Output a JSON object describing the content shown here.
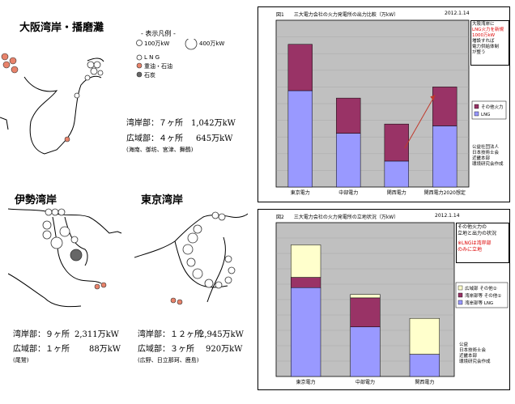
{
  "maps": {
    "osaka": {
      "title": "大阪湾岸・播磨灘",
      "legend_title": "- 表示凡例 -",
      "legend_100": "100万kW",
      "legend_400": "400万kW",
      "legend_lng": "L N G",
      "legend_oil": "重油・石油",
      "legend_coal": "石炭",
      "line1_label": "湾岸部：７ヶ所",
      "line1_value": "1,042万kW",
      "line2_label": "広域部：４ヶ所",
      "line2_value": "645万kW",
      "line2_note": "(海南、御坊、宮津、舞鶴)"
    },
    "ise": {
      "title": "伊勢湾岸",
      "line1_label": "湾岸部：９ヶ所",
      "line1_value": "2,311万kW",
      "line2_label": "広域部：１ヶ所",
      "line2_value": "88万kW",
      "line2_note": "(尾鷲)"
    },
    "tokyo": {
      "title": "東京湾岸",
      "line1_label": "湾岸部：１２ヶ所",
      "line1_value": "2,945万kW",
      "line2_label": "広域部：３ヶ所",
      "line2_value": "920万kW",
      "line2_note": "(広野、日立那珂、鹿島)"
    }
  },
  "chart_data": [
    {
      "type": "bar",
      "header": "図1　　三大電力会社の火力発電所の出力比較（万kW）",
      "date": "2012.1.14",
      "categories": [
        "東京電力",
        "中部電力",
        "関西電力",
        "関西電力2020想定"
      ],
      "series": [
        {
          "name": "LNG",
          "values": [
            2600,
            1450,
            700,
            1650
          ],
          "color": "#9999ff"
        },
        {
          "name": "その他火力",
          "values": [
            1250,
            950,
            1000,
            1050
          ],
          "color": "#993366"
        }
      ],
      "ylim": [
        0,
        4500
      ],
      "yticks": [],
      "note_box": [
        "大阪湾岸に",
        "LNG火力を新規",
        "1000万kW",
        "増設すれば",
        "電力供給体制",
        "が整う"
      ],
      "source": [
        "公益社団法人",
        "日本技術士会",
        "近畿本部",
        "環境研究会作成"
      ]
    },
    {
      "type": "bar",
      "header": "図2　　三大電力会社の火力発電所の立地状況（万kW）",
      "date": "2012.1.14",
      "categories": [
        "東京電力",
        "中部電力",
        "関西電力"
      ],
      "series": [
        {
          "name": "湾岸部等 LNG",
          "values": [
            2600,
            1450,
            650
          ],
          "color": "#9999ff"
        },
        {
          "name": "湾岸部等 その他①",
          "values": [
            300,
            850,
            0
          ],
          "color": "#993366"
        },
        {
          "name": "広域部 その他②",
          "values": [
            950,
            100,
            1050
          ],
          "color": "#ffffcc"
        }
      ],
      "ylim": [
        0,
        4500
      ],
      "note_box": [
        "その他火力の",
        "立地と出力の状況"
      ],
      "note_red": [
        "※LNGは湾岸部",
        "のみに立地"
      ],
      "source": [
        "公益",
        "日本技術士会",
        "近畿本部",
        "環境研究会作成"
      ]
    }
  ]
}
